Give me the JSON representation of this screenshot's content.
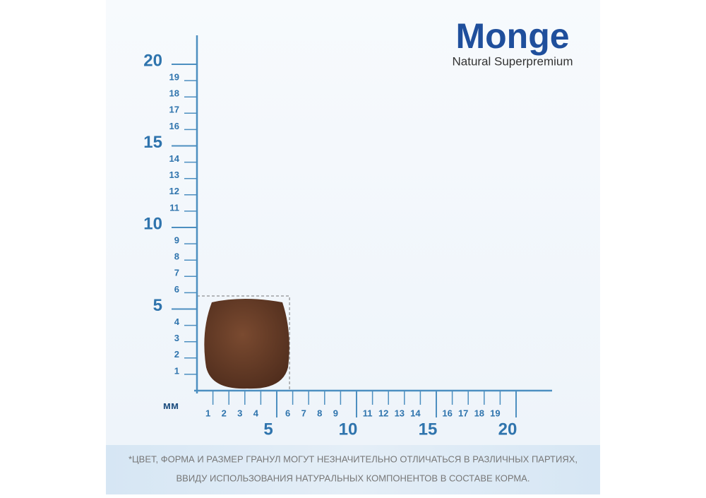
{
  "logo": {
    "brand": "Monge",
    "tagline": "Natural Superpremium"
  },
  "ruler": {
    "unit": "мм",
    "y_major": [
      "5",
      "10",
      "15",
      "20"
    ],
    "y_minor": [
      "1",
      "2",
      "3",
      "4",
      "6",
      "7",
      "8",
      "9",
      "11",
      "12",
      "13",
      "14",
      "16",
      "17",
      "18",
      "19"
    ],
    "x_major": [
      "5",
      "10",
      "15",
      "20"
    ],
    "x_minor": [
      "1",
      "2",
      "3",
      "4",
      "6",
      "7",
      "8",
      "9",
      "11",
      "12",
      "13",
      "14",
      "16",
      "17",
      "18",
      "19"
    ]
  },
  "footnote": {
    "line1": "*ЦВЕТ, ФОРМА И РАЗМЕР ГРАНУЛ МОГУТ НЕЗНАЧИТЕЛЬНО ОТЛИЧАТЬСЯ В РАЗЛИЧНЫХ ПАРТИЯХ,",
    "line2": "ВВИДУ ИСПОЛЬЗОВАНИЯ НАТУРАЛЬНЫХ КОМПОНЕНТОВ В СОСТАВЕ КОРМА."
  }
}
